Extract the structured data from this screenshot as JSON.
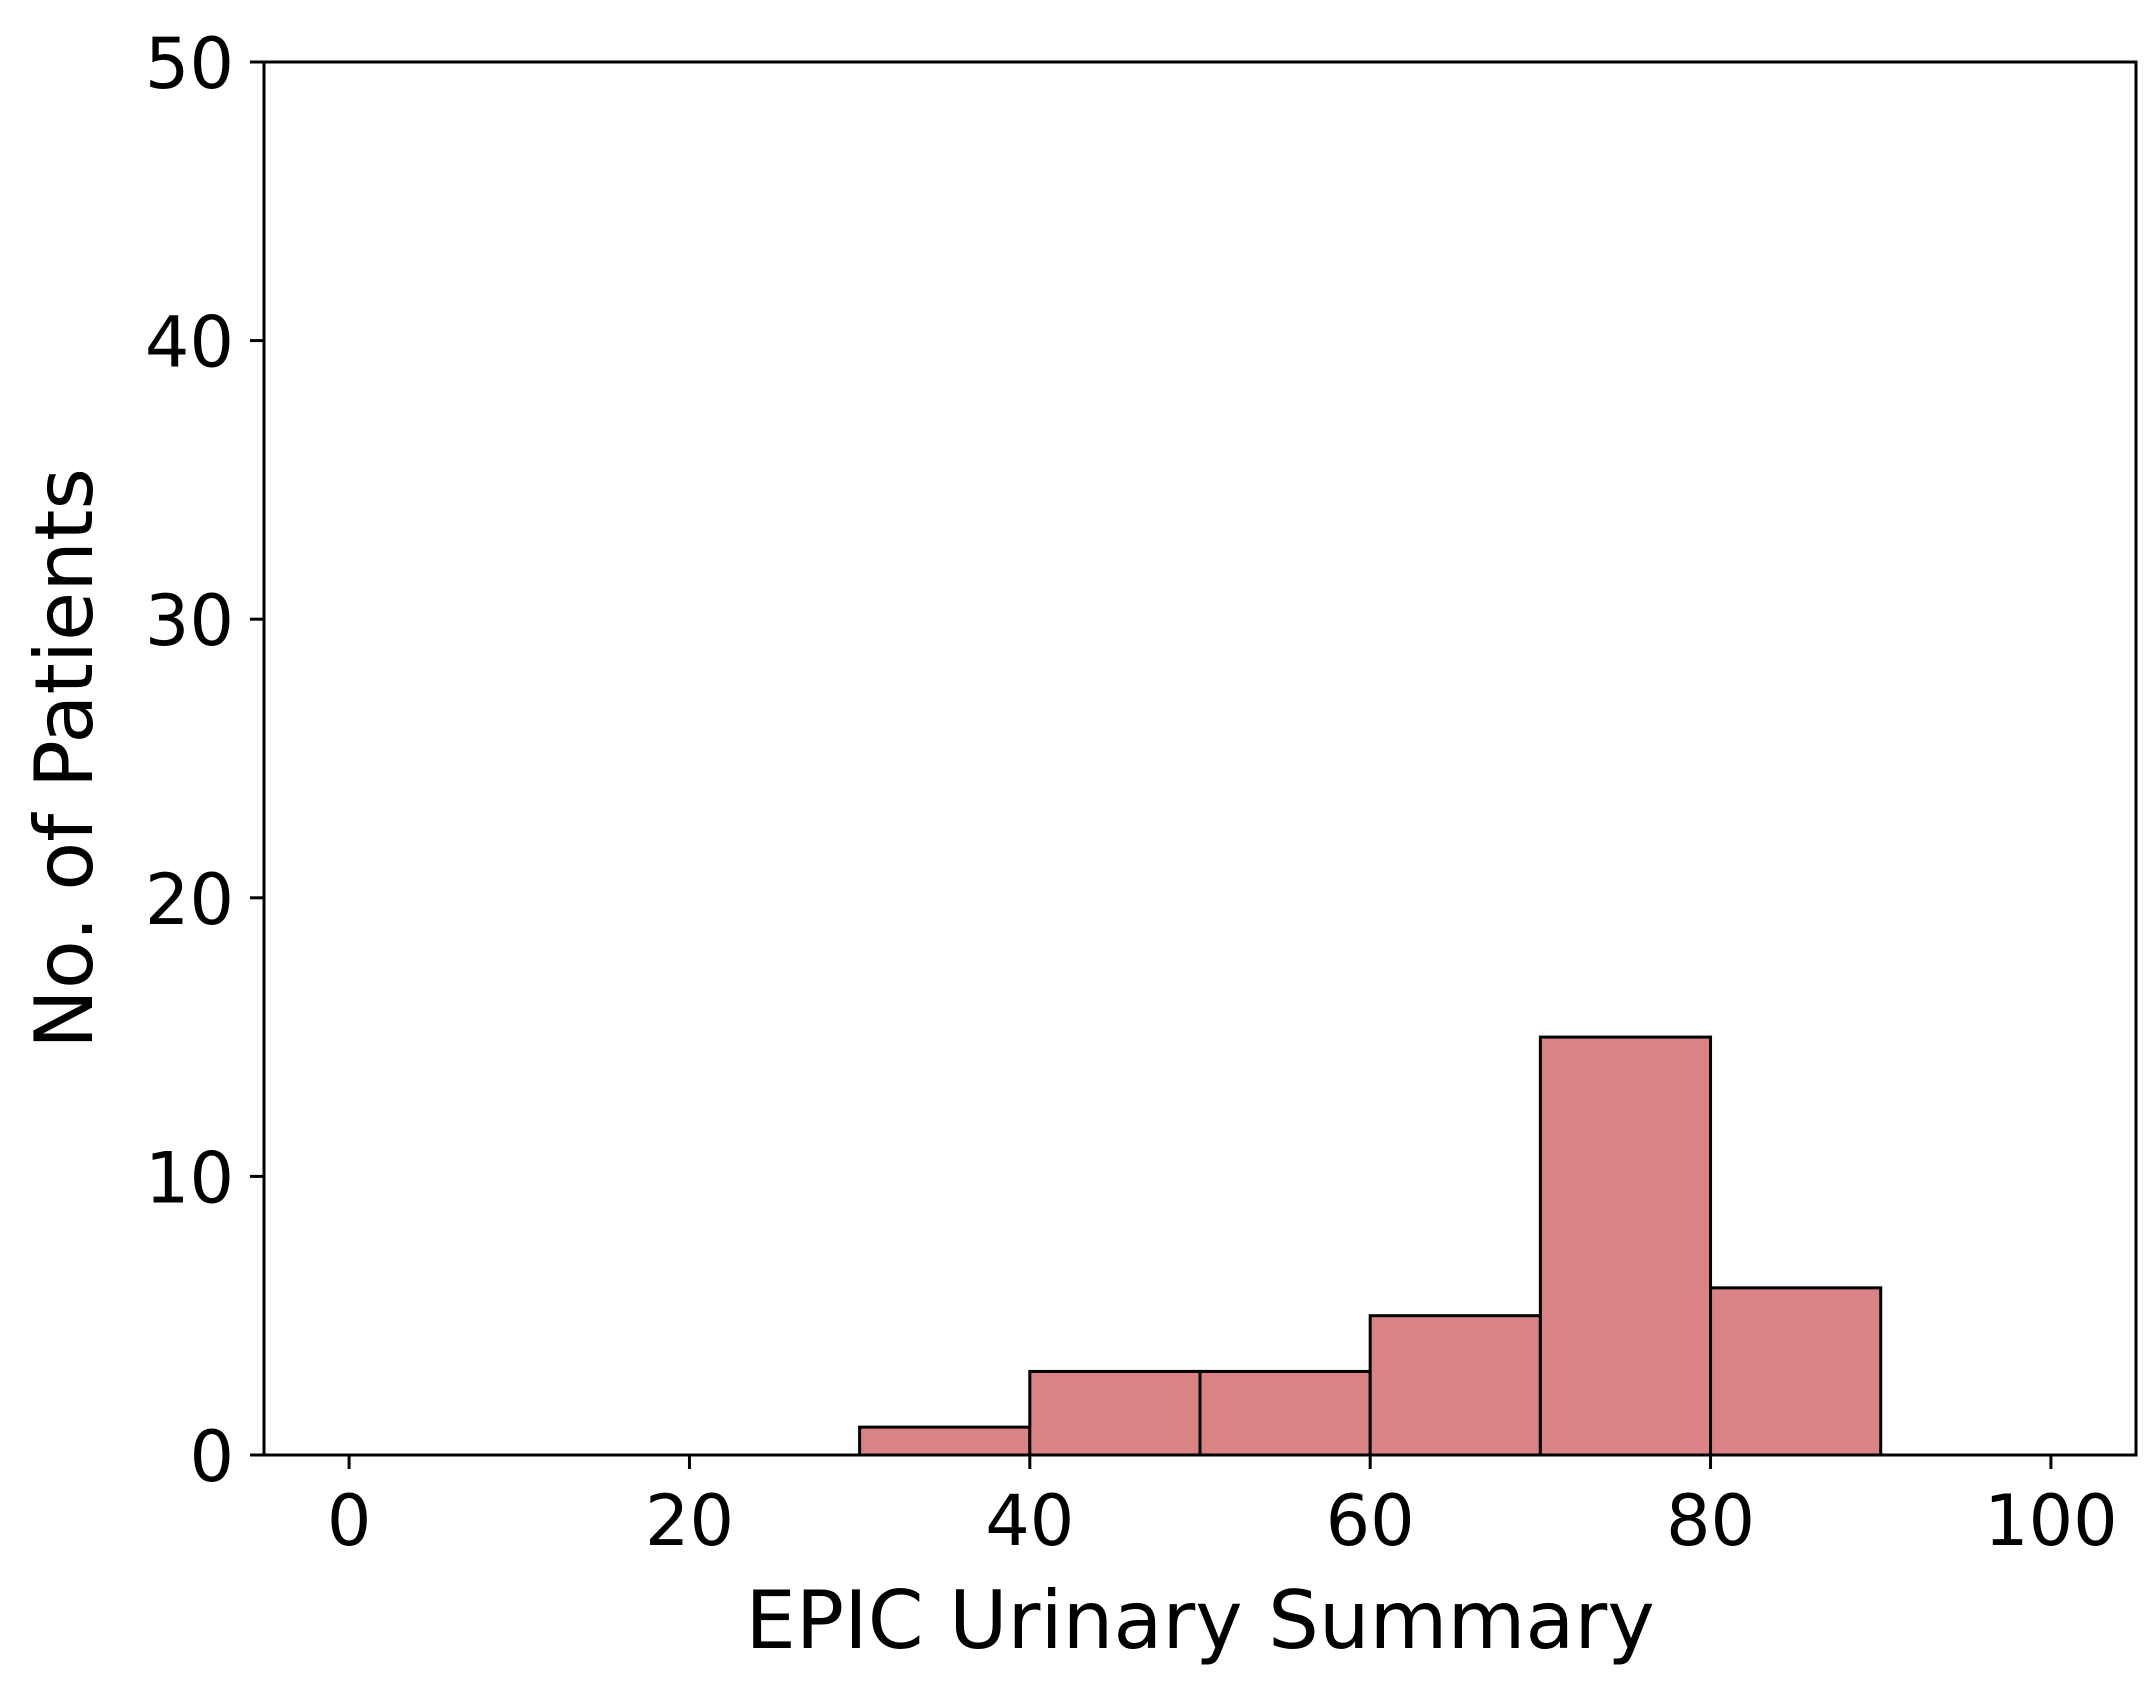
{
  "chart_data": {
    "type": "bar",
    "title": "",
    "xlabel": "EPIC Urinary Summary",
    "ylabel": "No. of Patients",
    "xlim": [
      -5,
      105
    ],
    "ylim": [
      0,
      50
    ],
    "xticks": [
      0,
      20,
      40,
      60,
      80,
      100
    ],
    "yticks": [
      0,
      10,
      20,
      30,
      40,
      50
    ],
    "grid": false,
    "legend": "none",
    "bar_color": "#d98385",
    "edge_color": "#000000",
    "bins": [
      {
        "start": 30,
        "end": 40,
        "count": 1
      },
      {
        "start": 40,
        "end": 50,
        "count": 3
      },
      {
        "start": 50,
        "end": 60,
        "count": 3
      },
      {
        "start": 60,
        "end": 70,
        "count": 5
      },
      {
        "start": 70,
        "end": 80,
        "count": 15
      },
      {
        "start": 80,
        "end": 90,
        "count": 6
      }
    ]
  }
}
